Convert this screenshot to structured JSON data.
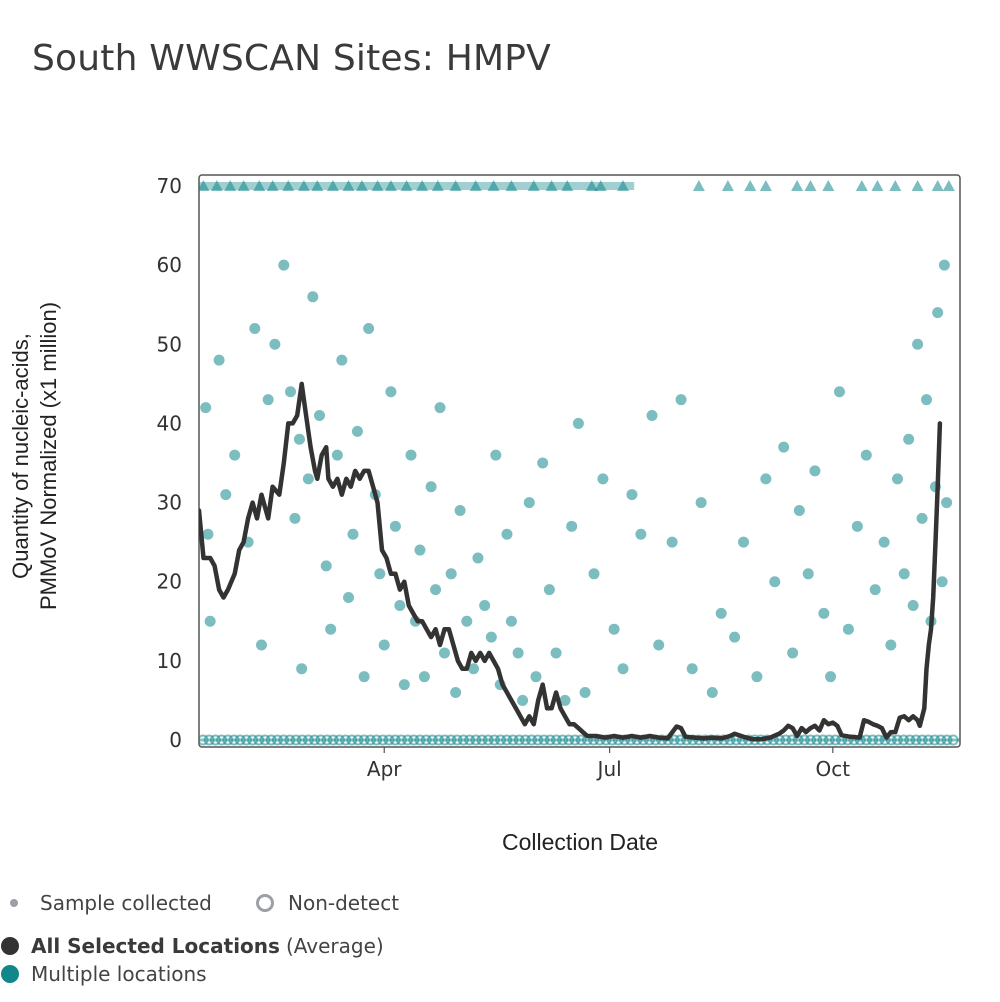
{
  "page": {
    "title": "South WWSCAN Sites: HMPV"
  },
  "legend": {
    "sample_collected": "Sample collected",
    "non_detect": "Non-detect",
    "average_label": "All Selected Locations",
    "average_suffix": "(Average)",
    "multiple_locations": "Multiple locations"
  },
  "colors": {
    "teal": "#11878c",
    "line": "#333333",
    "axis": "#555555"
  },
  "chart_data": {
    "type": "scatter",
    "title": "South WWSCAN Sites: HMPV",
    "xlabel": "Collection Date",
    "ylabel_lines": [
      "Quantity of nucleic-acids,",
      "PMMoV Normalized (x1 million)"
    ],
    "x_unit": "days since Jan 1",
    "xlim": [
      0,
      341
    ],
    "ylim": [
      0,
      70
    ],
    "y_ticks": [
      0,
      10,
      20,
      30,
      40,
      50,
      60,
      70
    ],
    "x_ticks": [
      {
        "label": "Apr",
        "day": 83
      },
      {
        "label": "Jul",
        "day": 184
      },
      {
        "label": "Oct",
        "day": 284
      }
    ],
    "capped_value": 70,
    "series": [
      {
        "name": "All Selected Locations (Average)",
        "type": "line",
        "points": [
          [
            0,
            29
          ],
          [
            2,
            23
          ],
          [
            5,
            23
          ],
          [
            7,
            22
          ],
          [
            9,
            19
          ],
          [
            11,
            18
          ],
          [
            13,
            19
          ],
          [
            16,
            21
          ],
          [
            18,
            24
          ],
          [
            20,
            25
          ],
          [
            22,
            28
          ],
          [
            24,
            30
          ],
          [
            26,
            28
          ],
          [
            28,
            31
          ],
          [
            31,
            28
          ],
          [
            33,
            32
          ],
          [
            36,
            31
          ],
          [
            38,
            35
          ],
          [
            40,
            40
          ],
          [
            42,
            40
          ],
          [
            44,
            41
          ],
          [
            46,
            45
          ],
          [
            48,
            41
          ],
          [
            50,
            37
          ],
          [
            52,
            34
          ],
          [
            53,
            33
          ],
          [
            55,
            36
          ],
          [
            57,
            37
          ],
          [
            58,
            33
          ],
          [
            60,
            32
          ],
          [
            62,
            33
          ],
          [
            64,
            31
          ],
          [
            66,
            33
          ],
          [
            68,
            32
          ],
          [
            70,
            34
          ],
          [
            72,
            33
          ],
          [
            74,
            34
          ],
          [
            76,
            34
          ],
          [
            78,
            32
          ],
          [
            80,
            30
          ],
          [
            82,
            24
          ],
          [
            84,
            23
          ],
          [
            86,
            21
          ],
          [
            88,
            21
          ],
          [
            90,
            19
          ],
          [
            92,
            20
          ],
          [
            94,
            17
          ],
          [
            96,
            16
          ],
          [
            98,
            15
          ],
          [
            100,
            15
          ],
          [
            102,
            14
          ],
          [
            104,
            13
          ],
          [
            106,
            14
          ],
          [
            108,
            12
          ],
          [
            110,
            14
          ],
          [
            112,
            14
          ],
          [
            114,
            12
          ],
          [
            116,
            10
          ],
          [
            118,
            9
          ],
          [
            120,
            9
          ],
          [
            122,
            11
          ],
          [
            124,
            10
          ],
          [
            126,
            11
          ],
          [
            128,
            10
          ],
          [
            130,
            11
          ],
          [
            132,
            10
          ],
          [
            134,
            9
          ],
          [
            136,
            7
          ],
          [
            138,
            6
          ],
          [
            140,
            5
          ],
          [
            142,
            4
          ],
          [
            144,
            3
          ],
          [
            146,
            2
          ],
          [
            148,
            3
          ],
          [
            150,
            2
          ],
          [
            152,
            5
          ],
          [
            154,
            7
          ],
          [
            156,
            4
          ],
          [
            158,
            4
          ],
          [
            160,
            6
          ],
          [
            162,
            4
          ],
          [
            164,
            3
          ],
          [
            166,
            2
          ],
          [
            168,
            2
          ],
          [
            170,
            1.5
          ],
          [
            172,
            1
          ],
          [
            174,
            0.5
          ],
          [
            178,
            0.5
          ],
          [
            182,
            0.3
          ],
          [
            186,
            0.5
          ],
          [
            190,
            0.3
          ],
          [
            194,
            0.5
          ],
          [
            198,
            0.3
          ],
          [
            202,
            0.5
          ],
          [
            206,
            0.3
          ],
          [
            210,
            0.2
          ],
          [
            214,
            1.7
          ],
          [
            216,
            1.5
          ],
          [
            218,
            0.4
          ],
          [
            222,
            0.3
          ],
          [
            226,
            0.2
          ],
          [
            230,
            0.3
          ],
          [
            234,
            0.2
          ],
          [
            238,
            0.5
          ],
          [
            240,
            0.8
          ],
          [
            244,
            0.4
          ],
          [
            248,
            0.1
          ],
          [
            252,
            0.1
          ],
          [
            256,
            0.3
          ],
          [
            260,
            0.8
          ],
          [
            262,
            1.2
          ],
          [
            264,
            1.8
          ],
          [
            266,
            1.5
          ],
          [
            268,
            0.5
          ],
          [
            270,
            1.5
          ],
          [
            272,
            1.0
          ],
          [
            274,
            1.5
          ],
          [
            276,
            1.8
          ],
          [
            278,
            1.2
          ],
          [
            280,
            2.5
          ],
          [
            282,
            2.0
          ],
          [
            284,
            2.2
          ],
          [
            286,
            1.8
          ],
          [
            288,
            0.6
          ],
          [
            292,
            0.4
          ],
          [
            296,
            0.3
          ],
          [
            298,
            2.5
          ],
          [
            300,
            2.3
          ],
          [
            302,
            2.0
          ],
          [
            304,
            1.8
          ],
          [
            306,
            1.5
          ],
          [
            308,
            0.3
          ],
          [
            310,
            1.0
          ],
          [
            312,
            1.0
          ],
          [
            314,
            2.8
          ],
          [
            316,
            3.0
          ],
          [
            318,
            2.5
          ],
          [
            320,
            3.0
          ],
          [
            322,
            2.5
          ],
          [
            323,
            1.8
          ],
          [
            325,
            4
          ],
          [
            326,
            9
          ],
          [
            327,
            12
          ],
          [
            328,
            14
          ],
          [
            329,
            18
          ],
          [
            330,
            25
          ],
          [
            331,
            32
          ],
          [
            332,
            40
          ]
        ]
      },
      {
        "name": "Multiple locations",
        "type": "scatter",
        "points": [
          [
            3,
            42
          ],
          [
            4,
            26
          ],
          [
            5,
            15
          ],
          [
            9,
            48
          ],
          [
            12,
            31
          ],
          [
            16,
            36
          ],
          [
            22,
            25
          ],
          [
            25,
            52
          ],
          [
            28,
            12
          ],
          [
            31,
            43
          ],
          [
            34,
            50
          ],
          [
            38,
            60
          ],
          [
            41,
            44
          ],
          [
            43,
            28
          ],
          [
            45,
            38
          ],
          [
            46,
            9
          ],
          [
            49,
            33
          ],
          [
            51,
            56
          ],
          [
            54,
            41
          ],
          [
            57,
            22
          ],
          [
            59,
            14
          ],
          [
            62,
            36
          ],
          [
            64,
            48
          ],
          [
            67,
            18
          ],
          [
            69,
            26
          ],
          [
            71,
            39
          ],
          [
            74,
            8
          ],
          [
            76,
            52
          ],
          [
            79,
            31
          ],
          [
            81,
            21
          ],
          [
            83,
            12
          ],
          [
            86,
            44
          ],
          [
            88,
            27
          ],
          [
            90,
            17
          ],
          [
            92,
            7
          ],
          [
            95,
            36
          ],
          [
            97,
            15
          ],
          [
            99,
            24
          ],
          [
            101,
            8
          ],
          [
            104,
            32
          ],
          [
            106,
            19
          ],
          [
            108,
            42
          ],
          [
            110,
            11
          ],
          [
            113,
            21
          ],
          [
            115,
            6
          ],
          [
            117,
            29
          ],
          [
            120,
            15
          ],
          [
            123,
            9
          ],
          [
            125,
            23
          ],
          [
            128,
            17
          ],
          [
            131,
            13
          ],
          [
            133,
            36
          ],
          [
            135,
            7
          ],
          [
            138,
            26
          ],
          [
            140,
            15
          ],
          [
            143,
            11
          ],
          [
            145,
            5
          ],
          [
            148,
            30
          ],
          [
            151,
            8
          ],
          [
            154,
            35
          ],
          [
            157,
            19
          ],
          [
            160,
            11
          ],
          [
            164,
            5
          ],
          [
            167,
            27
          ],
          [
            170,
            40
          ],
          [
            173,
            6
          ],
          [
            177,
            21
          ],
          [
            181,
            33
          ],
          [
            186,
            14
          ],
          [
            190,
            9
          ],
          [
            194,
            31
          ],
          [
            198,
            26
          ],
          [
            203,
            41
          ],
          [
            206,
            12
          ],
          [
            212,
            25
          ],
          [
            216,
            43
          ],
          [
            221,
            9
          ],
          [
            225,
            30
          ],
          [
            230,
            6
          ],
          [
            234,
            16
          ],
          [
            240,
            13
          ],
          [
            244,
            25
          ],
          [
            250,
            8
          ],
          [
            254,
            33
          ],
          [
            258,
            20
          ],
          [
            262,
            37
          ],
          [
            266,
            11
          ],
          [
            269,
            29
          ],
          [
            273,
            21
          ],
          [
            276,
            34
          ],
          [
            280,
            16
          ],
          [
            283,
            8
          ],
          [
            287,
            44
          ],
          [
            291,
            14
          ],
          [
            295,
            27
          ],
          [
            299,
            36
          ],
          [
            303,
            19
          ],
          [
            307,
            25
          ],
          [
            310,
            12
          ],
          [
            313,
            33
          ],
          [
            316,
            21
          ],
          [
            318,
            38
          ],
          [
            320,
            17
          ],
          [
            322,
            50
          ],
          [
            324,
            28
          ],
          [
            326,
            43
          ],
          [
            328,
            15
          ],
          [
            330,
            32
          ],
          [
            331,
            54
          ],
          [
            333,
            20
          ],
          [
            334,
            60
          ],
          [
            335,
            30
          ]
        ]
      },
      {
        "name": "Sample collected (capped at 70)",
        "type": "capped",
        "points": [
          [
            2,
            70
          ],
          [
            8,
            70
          ],
          [
            14,
            70
          ],
          [
            20,
            70
          ],
          [
            27,
            70
          ],
          [
            33,
            70
          ],
          [
            40,
            70
          ],
          [
            47,
            70
          ],
          [
            53,
            70
          ],
          [
            60,
            70
          ],
          [
            67,
            70
          ],
          [
            73,
            70
          ],
          [
            80,
            70
          ],
          [
            86,
            70
          ],
          [
            93,
            70
          ],
          [
            100,
            70
          ],
          [
            107,
            70
          ],
          [
            115,
            70
          ],
          [
            124,
            70
          ],
          [
            132,
            70
          ],
          [
            140,
            70
          ],
          [
            150,
            70
          ],
          [
            158,
            70
          ],
          [
            165,
            70
          ],
          [
            176,
            70
          ],
          [
            180,
            70
          ],
          [
            190,
            70
          ],
          [
            224,
            70
          ],
          [
            237,
            70
          ],
          [
            247,
            70
          ],
          [
            254,
            70
          ],
          [
            268,
            70
          ],
          [
            274,
            70
          ],
          [
            282,
            70
          ],
          [
            297,
            70
          ],
          [
            304,
            70
          ],
          [
            312,
            70
          ],
          [
            322,
            70
          ],
          [
            331,
            70
          ],
          [
            336,
            70
          ]
        ]
      },
      {
        "name": "Non-detect",
        "type": "nondetect",
        "value": 0
      }
    ]
  }
}
